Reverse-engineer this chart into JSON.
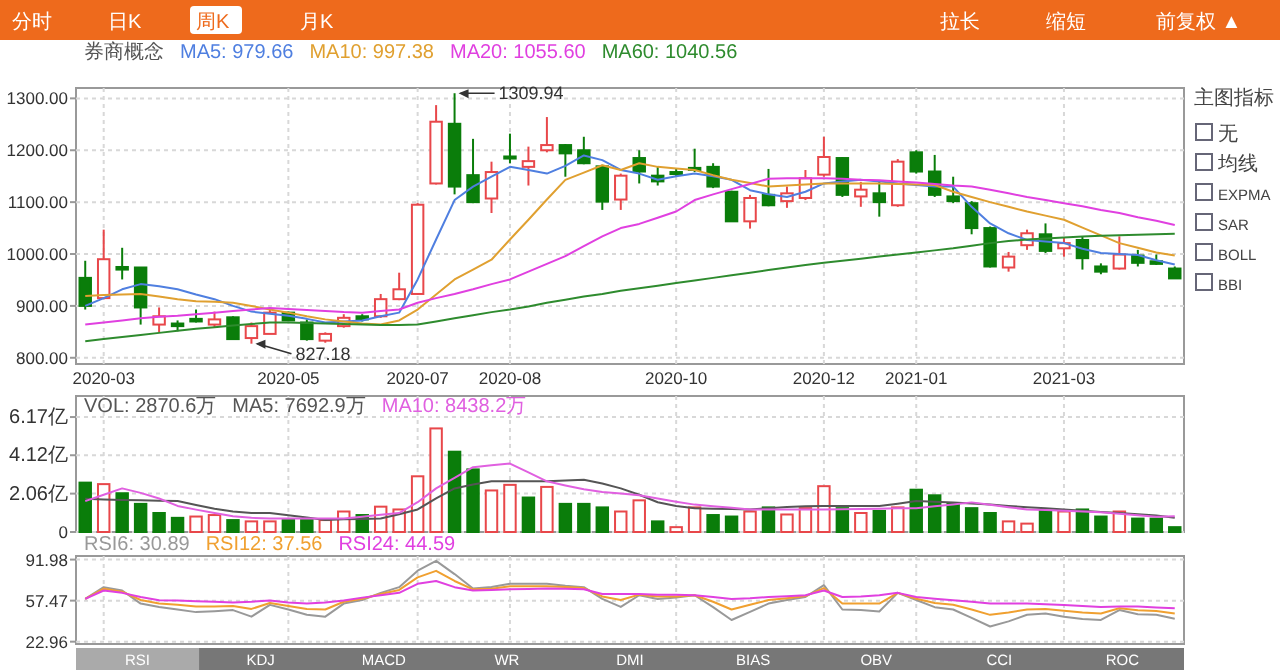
{
  "chart_data": [
    {
      "type": "candlestick",
      "title": "券商概念",
      "legend": "top left",
      "grid": true,
      "categories": [
        null,
        "2020-03",
        null,
        null,
        null,
        null,
        null,
        null,
        null,
        null,
        null,
        "2020-05",
        null,
        null,
        null,
        null,
        null,
        null,
        "2020-07",
        null,
        null,
        null,
        null,
        "2020-08",
        null,
        null,
        null,
        null,
        null,
        null,
        null,
        null,
        "2020-10",
        null,
        null,
        null,
        null,
        null,
        null,
        null,
        "2020-12",
        null,
        null,
        null,
        null,
        "2021-01",
        null,
        null,
        null,
        null,
        null,
        null,
        null,
        "2021-03",
        null,
        null,
        null,
        null,
        null,
        null
      ],
      "ohlc": [
        [
          954,
          987,
          893,
          900
        ],
        [
          915,
          1047,
          913,
          990
        ],
        [
          975,
          1012,
          951,
          970
        ],
        [
          974,
          974,
          864,
          897
        ],
        [
          864,
          897,
          849,
          880
        ],
        [
          866,
          872,
          851,
          861
        ],
        [
          875,
          893,
          868,
          870
        ],
        [
          864,
          889,
          859,
          874
        ],
        [
          878,
          880,
          836,
          836
        ],
        [
          838,
          868,
          827.18,
          861
        ],
        [
          846,
          896,
          846,
          887
        ],
        [
          887,
          889,
          872,
          872
        ],
        [
          868,
          874,
          833,
          836
        ],
        [
          833,
          849,
          829,
          846
        ],
        [
          861,
          884,
          858,
          877
        ],
        [
          880,
          884,
          870,
          874
        ],
        [
          880,
          923,
          877,
          913
        ],
        [
          913,
          964,
          911,
          932
        ],
        [
          923,
          1098,
          921,
          1095
        ],
        [
          1136,
          1287,
          1134,
          1255
        ],
        [
          1251,
          1309.94,
          1115,
          1130
        ],
        [
          1152,
          1222,
          1098,
          1100
        ],
        [
          1107,
          1178,
          1079,
          1158
        ],
        [
          1188,
          1232,
          1175,
          1184
        ],
        [
          1168,
          1207,
          1132,
          1179
        ],
        [
          1200,
          1264,
          1196,
          1210
        ],
        [
          1210,
          1212,
          1149,
          1194
        ],
        [
          1200,
          1226,
          1173,
          1175
        ],
        [
          1169,
          1172,
          1085,
          1101
        ],
        [
          1105,
          1155,
          1085,
          1151
        ],
        [
          1185,
          1200,
          1136,
          1159
        ],
        [
          1151,
          1168,
          1132,
          1140
        ],
        [
          1158,
          1165,
          1150,
          1155
        ],
        [
          1166,
          1203,
          1158,
          1162
        ],
        [
          1168,
          1175,
          1127,
          1130
        ],
        [
          1120,
          1122,
          1062,
          1063
        ],
        [
          1063,
          1114,
          1049,
          1108
        ],
        [
          1114,
          1164,
          1092,
          1094
        ],
        [
          1102,
          1130,
          1089,
          1117
        ],
        [
          1108,
          1162,
          1104,
          1146
        ],
        [
          1153,
          1226,
          1149,
          1187
        ],
        [
          1185,
          1187,
          1110,
          1114
        ],
        [
          1111,
          1139,
          1091,
          1124
        ],
        [
          1117,
          1140,
          1072,
          1100
        ],
        [
          1094,
          1183,
          1091,
          1178
        ],
        [
          1196,
          1200,
          1155,
          1159
        ],
        [
          1159,
          1191,
          1110,
          1114
        ],
        [
          1111,
          1149,
          1098,
          1102
        ],
        [
          1098,
          1102,
          1038,
          1050
        ],
        [
          1050,
          1053,
          974,
          976
        ],
        [
          974,
          1004,
          966,
          995
        ],
        [
          1017,
          1047,
          1008,
          1040
        ],
        [
          1038,
          1059,
          1002,
          1006
        ],
        [
          1011,
          1031,
          995,
          1021
        ],
        [
          1027,
          1034,
          970,
          992
        ],
        [
          976,
          982,
          961,
          966
        ],
        [
          972,
          1034,
          970,
          999
        ],
        [
          997,
          1008,
          976,
          983
        ],
        [
          986,
          999,
          979,
          981
        ],
        [
          972,
          976,
          953,
          953
        ]
      ],
      "series": [
        {
          "type": "line",
          "name": "MA5: 979.66",
          "color": "#4f7fe0",
          "values": [
            900,
            915,
            932,
            942,
            938,
            932,
            922,
            913,
            900,
            889,
            885,
            881,
            875,
            868,
            870,
            872,
            880,
            887,
            951,
            1028,
            1104,
            1130,
            1149,
            1168,
            1162,
            1155,
            1170,
            1190,
            1181,
            1162,
            1155,
            1143,
            1150,
            1155,
            1150,
            1143,
            1123,
            1115,
            1110,
            1120,
            1136,
            1140,
            1143,
            1140,
            1136,
            1133,
            1130,
            1130,
            1091,
            1059,
            1040,
            1027,
            1024,
            1021,
            1010,
            1002,
            1000,
            998,
            988,
            980
          ]
        },
        {
          "type": "line",
          "name": "MA10: 997.38",
          "color": "#e0a030",
          "values": [
            919,
            921,
            922,
            923,
            918,
            913,
            909,
            908,
            906,
            900,
            893,
            887,
            880,
            874,
            870,
            866,
            864,
            872,
            893,
            922,
            951,
            970,
            989,
            1028,
            1066,
            1105,
            1143,
            1157,
            1171,
            1162,
            1175,
            1168,
            1165,
            1162,
            1152,
            1143,
            1137,
            1130,
            1132,
            1134,
            1136,
            1136,
            1136,
            1136,
            1135,
            1134,
            1133,
            1120,
            1110,
            1100,
            1091,
            1082,
            1074,
            1066,
            1051,
            1036,
            1021,
            1012,
            1003,
            997
          ]
        },
        {
          "type": "line",
          "name": "MA20: 1055.60",
          "color": "#e040e0",
          "values": [
            864,
            868,
            872,
            876,
            879,
            881,
            884,
            887,
            890,
            893,
            896,
            894,
            892,
            890,
            888,
            887,
            890,
            893,
            906,
            915,
            923,
            932,
            942,
            951,
            966,
            981,
            996,
            1015,
            1034,
            1050,
            1058,
            1070,
            1082,
            1104,
            1115,
            1125,
            1135,
            1145,
            1146,
            1146,
            1146,
            1145,
            1143,
            1142,
            1140,
            1138,
            1135,
            1132,
            1130,
            1124,
            1117,
            1110,
            1104,
            1098,
            1092,
            1085,
            1079,
            1071,
            1064,
            1056
          ]
        },
        {
          "type": "line",
          "name": "MA60: 1040.56",
          "color": "#2e8b2e",
          "values": [
            832,
            836,
            840,
            844,
            848,
            852,
            856,
            859,
            862,
            865,
            868,
            868,
            867,
            866,
            865,
            864,
            863,
            863,
            864,
            870,
            876,
            882,
            888,
            893,
            899,
            906,
            912,
            918,
            923,
            929,
            934,
            939,
            944,
            949,
            954,
            959,
            964,
            969,
            974,
            979,
            983,
            987,
            991,
            995,
            999,
            1003,
            1007,
            1011,
            1016,
            1021,
            1025,
            1028,
            1030,
            1032,
            1034,
            1035,
            1036,
            1037,
            1038,
            1039
          ]
        }
      ],
      "ylim": [
        788,
        1320
      ],
      "yticks": [
        {
          "value": 800,
          "label": "800.00"
        },
        {
          "value": 900,
          "label": "900.00"
        },
        {
          "value": 1000,
          "label": "1000.00"
        },
        {
          "value": 1100,
          "label": "1100.00"
        },
        {
          "value": 1200,
          "label": "1200.00"
        },
        {
          "value": 1300,
          "label": "1300.00"
        }
      ],
      "annotations": [
        "1309.94",
        "827.18"
      ]
    },
    {
      "type": "bar",
      "title": "VOL: 2870.6万",
      "legend": "top left",
      "grid": true,
      "tick_labels": "y",
      "categories": [
        null,
        "2020-03",
        null,
        null,
        null,
        null,
        null,
        null,
        null,
        null,
        null,
        "2020-05",
        null,
        null,
        null,
        null,
        null,
        null,
        "2020-07",
        null,
        null,
        null,
        null,
        "2020-08",
        null,
        null,
        null,
        null,
        null,
        null,
        null,
        null,
        "2020-10",
        null,
        null,
        null,
        null,
        null,
        null,
        null,
        "2020-12",
        null,
        null,
        null,
        null,
        "2021-01",
        null,
        null,
        null,
        null,
        null,
        null,
        null,
        "2021-03",
        null,
        null,
        null,
        null,
        null,
        null
      ],
      "series": [
        {
          "type": "bar",
          "color": "#e8474a",
          "values": [
            null,
            2.57,
            null,
            null,
            null,
            null,
            0.83,
            0.91,
            null,
            0.57,
            0.57,
            null,
            null,
            0.64,
            1.1,
            null,
            1.36,
            1.21,
            2.99,
            5.56,
            null,
            null,
            2.23,
            2.53,
            null,
            2.42,
            null,
            null,
            null,
            1.1,
            1.7,
            null,
            0.26,
            1.32,
            null,
            null,
            1.1,
            null,
            0.94,
            1.28,
            2.46,
            null,
            1.02,
            null,
            1.32,
            null,
            null,
            null,
            null,
            null,
            0.57,
            0.45,
            null,
            1.1,
            null,
            null,
            1.1,
            null,
            null,
            null
          ]
        },
        {
          "type": "bar",
          "color": "#0a7d0a",
          "values": [
            2.65,
            null,
            2.08,
            1.51,
            1.02,
            0.76,
            null,
            null,
            0.64,
            null,
            null,
            0.64,
            0.64,
            null,
            null,
            0.91,
            null,
            null,
            null,
            null,
            4.31,
            3.36,
            null,
            null,
            1.85,
            null,
            1.51,
            1.51,
            1.32,
            null,
            null,
            0.57,
            null,
            null,
            0.91,
            0.83,
            null,
            1.32,
            null,
            null,
            null,
            1.28,
            null,
            1.13,
            null,
            2.27,
            1.97,
            1.51,
            1.28,
            1.02,
            null,
            null,
            1.13,
            null,
            1.21,
            0.83,
            null,
            0.72,
            0.72,
            0.26
          ]
        },
        {
          "type": "line",
          "name": "MA5: 7692.9万",
          "color": "#555555",
          "values": [
            1.78,
            1.75,
            1.72,
            1.7,
            1.68,
            1.66,
            1.45,
            1.25,
            1.1,
            1.02,
            1.02,
            0.9,
            0.78,
            0.64,
            0.68,
            0.7,
            0.72,
            0.95,
            1.21,
            1.8,
            2.34,
            2.55,
            2.72,
            2.72,
            2.72,
            2.72,
            2.76,
            2.8,
            2.6,
            2.34,
            2.0,
            1.6,
            1.4,
            1.28,
            1.25,
            1.23,
            1.21,
            1.28,
            1.34,
            1.38,
            1.4,
            1.4,
            1.4,
            1.4,
            1.52,
            1.66,
            1.62,
            1.59,
            1.53,
            1.47,
            1.4,
            1.33,
            1.27,
            1.21,
            1.14,
            1.08,
            1.02,
            0.95,
            0.88,
            0.77
          ]
        },
        {
          "type": "line",
          "name": "MA10: 8438.2万",
          "color": "#e060e0",
          "values": [
            1.66,
            2.0,
            2.34,
            2.1,
            1.8,
            1.4,
            1.2,
            1.02,
            0.85,
            0.76,
            0.72,
            0.72,
            0.72,
            0.72,
            0.72,
            0.82,
            0.92,
            1.02,
            1.6,
            2.34,
            2.9,
            3.48,
            3.58,
            3.67,
            3.2,
            2.72,
            2.5,
            2.3,
            2.15,
            2.06,
            1.97,
            1.8,
            1.63,
            1.47,
            1.38,
            1.3,
            1.21,
            1.21,
            1.21,
            1.21,
            1.21,
            1.22,
            1.24,
            1.25,
            1.27,
            1.28,
            1.38,
            1.48,
            1.59,
            1.46,
            1.33,
            1.21,
            1.18,
            1.14,
            1.1,
            1.06,
            0.98,
            0.9,
            0.82,
            0.84
          ]
        }
      ],
      "ylim": [
        0,
        7.3
      ],
      "yticks": [
        0,
        {
          "value": 2.06,
          "label": "2.06亿"
        },
        {
          "value": 4.12,
          "label": "4.12亿"
        },
        {
          "value": 6.17,
          "label": "6.17亿"
        }
      ]
    },
    {
      "type": "line",
      "legend": "top left",
      "grid": true,
      "tick_labels": "y",
      "categories": [
        null,
        "2020-03",
        null,
        null,
        null,
        null,
        null,
        null,
        null,
        null,
        null,
        "2020-05",
        null,
        null,
        null,
        null,
        null,
        null,
        "2020-07",
        null,
        null,
        null,
        null,
        "2020-08",
        null,
        null,
        null,
        null,
        null,
        null,
        null,
        null,
        "2020-10",
        null,
        null,
        null,
        null,
        null,
        null,
        null,
        "2020-12",
        null,
        null,
        null,
        null,
        "2021-01",
        null,
        null,
        null,
        null,
        null,
        null,
        null,
        "2021-03",
        null,
        null,
        null,
        null,
        null,
        null
      ],
      "series": [
        {
          "name": "RSI6: 30.89",
          "color": "#999999",
          "values": [
            58.9,
            68.8,
            66,
            55,
            52.2,
            50,
            47.8,
            48.5,
            49.5,
            44,
            53.9,
            50,
            45.6,
            44,
            55,
            58,
            64,
            68.8,
            82.6,
            90.9,
            79.8,
            67.7,
            69,
            71.6,
            71.6,
            71.6,
            70,
            68.8,
            58.9,
            52.2,
            62,
            58.9,
            60,
            62,
            52,
            41.2,
            48,
            55,
            58,
            60.5,
            70.5,
            50,
            49.5,
            48.3,
            64,
            58,
            52,
            50,
            43,
            35.7,
            40,
            45.6,
            46.7,
            44,
            42,
            41.2,
            49.5,
            46,
            45.6,
            42.3
          ]
        },
        {
          "name": "RSI12: 37.56",
          "color": "#f0a030",
          "values": [
            58.9,
            67.5,
            65,
            58,
            55,
            54,
            52.5,
            52.5,
            53,
            50.5,
            55.5,
            53,
            50.5,
            50,
            56.5,
            59,
            63,
            66.5,
            77,
            82.5,
            74,
            67,
            67.5,
            69.5,
            69.5,
            69.5,
            69,
            68,
            61,
            58,
            62.5,
            61,
            61,
            62,
            56.5,
            50,
            54,
            58,
            59.5,
            61.3,
            68,
            55,
            55,
            55,
            64,
            59,
            55.5,
            54,
            50,
            45.5,
            47.5,
            50,
            50.5,
            49,
            47.5,
            46.7,
            51,
            49.3,
            48.7,
            46.7
          ]
        },
        {
          "name": "RSI24: 44.59",
          "color": "#e040e0",
          "values": [
            58.9,
            66,
            64,
            60.5,
            57.8,
            57.5,
            57,
            56.5,
            56,
            56.5,
            57.5,
            56,
            55,
            56,
            57.5,
            60,
            62,
            64,
            71.6,
            74,
            68.8,
            66,
            66.5,
            67,
            67.3,
            67.7,
            67.5,
            67,
            63,
            63,
            63,
            62.5,
            62.5,
            62,
            60.5,
            58.9,
            59.5,
            60.5,
            61.2,
            62,
            66,
            60.5,
            61,
            62,
            64,
            60.5,
            59,
            57.8,
            56.5,
            55,
            55,
            55,
            54.5,
            53.9,
            53,
            52.2,
            52.5,
            52.5,
            51.8,
            51.1
          ]
        }
      ],
      "ylim": [
        21,
        95
      ],
      "yticks": [
        22.96,
        57.47,
        91.98
      ]
    },
    {
      "type": "other",
      "annotations": [
        "分时",
        "日K",
        "周K",
        "月K",
        "拉长",
        "缩短",
        "前复权 ▲",
        "主图指标",
        "无",
        "均线",
        "EXPMA",
        "SAR",
        "BOLL",
        "BBI",
        "RSI",
        "KDJ",
        "MACD",
        "WR",
        "DMI",
        "BIAS",
        "OBV",
        "CCI",
        "ROC"
      ]
    }
  ]
}
